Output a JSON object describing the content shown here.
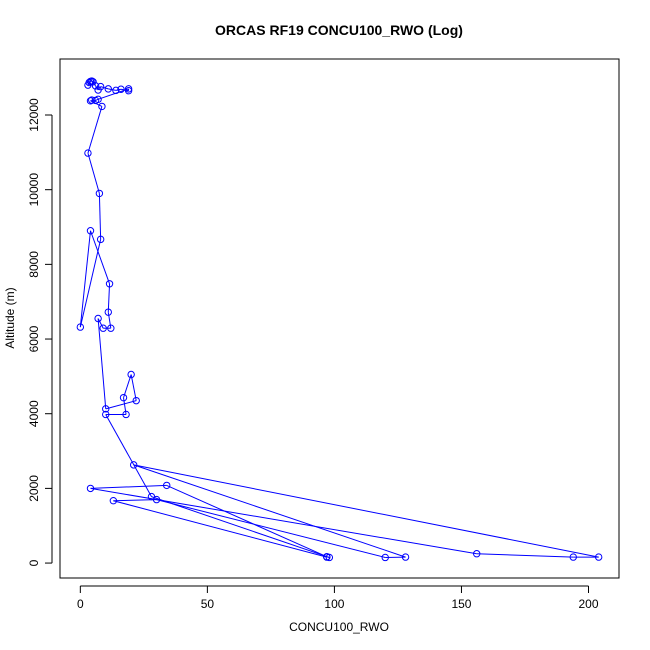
{
  "chart_data": {
    "type": "line",
    "title": "ORCAS RF19 CONCU100_RWO (Log)",
    "xlabel": "CONCU100_RWO",
    "ylabel": "Altitude (m)",
    "xlim": [
      -8,
      212
    ],
    "ylim": [
      -400,
      13500
    ],
    "x_ticks": [
      0,
      50,
      100,
      150,
      200
    ],
    "y_ticks": [
      0,
      2000,
      4000,
      6000,
      8000,
      10000,
      12000
    ],
    "grid": false,
    "series": [
      {
        "color": "#0000ff",
        "marker": "open-circle",
        "points": [
          [
            3,
            12800
          ],
          [
            3.5,
            12870
          ],
          [
            4,
            12900
          ],
          [
            4.5,
            12910
          ],
          [
            5,
            12890
          ],
          [
            6,
            12780
          ],
          [
            7,
            12670
          ],
          [
            8,
            12760
          ],
          [
            11,
            12700
          ],
          [
            14,
            12660
          ],
          [
            16,
            12690
          ],
          [
            19,
            12650
          ],
          [
            19,
            12700
          ],
          [
            7,
            12420
          ],
          [
            6,
            12390
          ],
          [
            4.5,
            12400
          ],
          [
            4,
            12380
          ],
          [
            8.5,
            12230
          ],
          [
            3,
            10980
          ],
          [
            7.5,
            9900
          ],
          [
            8,
            8670
          ],
          [
            0,
            6320
          ],
          [
            4,
            8900
          ],
          [
            11.5,
            7480
          ],
          [
            11,
            6720
          ],
          [
            12,
            6290
          ],
          [
            9,
            6290
          ],
          [
            7,
            6550
          ],
          [
            10,
            4130
          ],
          [
            22,
            4350
          ],
          [
            20,
            5050
          ],
          [
            17,
            4430
          ],
          [
            18,
            3980
          ],
          [
            10,
            3980
          ],
          [
            28,
            1780
          ],
          [
            98,
            150
          ],
          [
            97,
            170
          ],
          [
            34,
            2080
          ],
          [
            4,
            2000
          ],
          [
            156,
            250
          ],
          [
            194,
            160
          ],
          [
            204,
            160
          ],
          [
            21,
            2630
          ],
          [
            128,
            160
          ],
          [
            120,
            150
          ],
          [
            30,
            1700
          ],
          [
            13,
            1670
          ],
          [
            97,
            160
          ]
        ]
      }
    ]
  }
}
